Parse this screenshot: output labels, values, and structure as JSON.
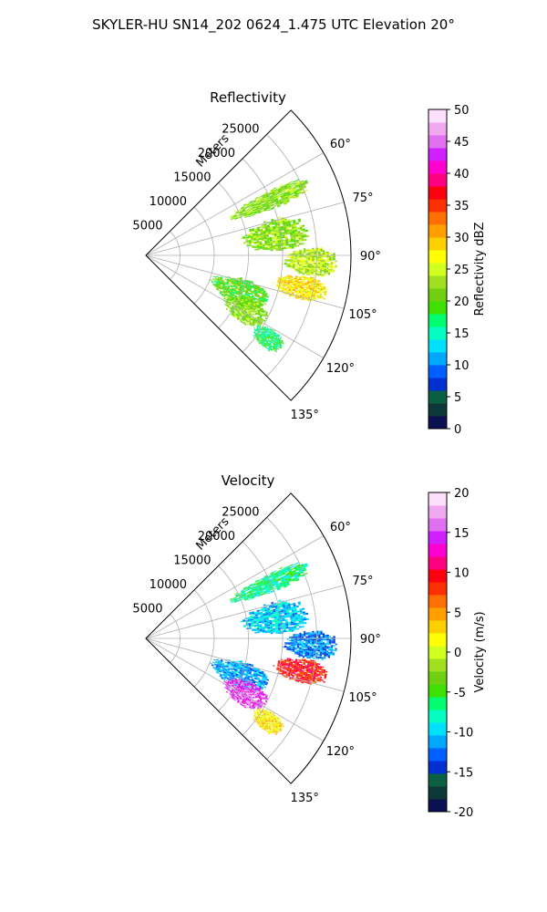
{
  "figure": {
    "suptitle": "SKYLER-HU  SN14_202  0624_1.475 UTC Elevation 20°"
  },
  "chart_data": [
    {
      "type": "heatmap",
      "projection": "polar-sector",
      "title": "Reflectivity",
      "range_label": "Meters",
      "range_ticks": [
        5000,
        10000,
        15000,
        20000,
        25000
      ],
      "range_lim": [
        0,
        30000
      ],
      "azimuth_lim_deg": [
        45,
        135
      ],
      "azimuth_ticks": [
        "60°",
        "75°",
        "90°",
        "105°",
        "120°",
        "135°"
      ],
      "grid": true,
      "colorbar": {
        "label": "Reflectivity dBZ",
        "ticks": [
          0,
          5,
          10,
          15,
          20,
          25,
          30,
          35,
          40,
          45,
          50
        ],
        "range": [
          0,
          50
        ],
        "colors": [
          "#0a1050",
          "#0d3838",
          "#0a6040",
          "#0030d0",
          "#0060ff",
          "#00a8ff",
          "#00e0ff",
          "#00ffc0",
          "#00ff70",
          "#40e000",
          "#70d010",
          "#a0e020",
          "#d0ff20",
          "#ffff00",
          "#ffd000",
          "#ffa000",
          "#ff7000",
          "#ff3000",
          "#ff0010",
          "#ff0080",
          "#ff00d0",
          "#d020ff",
          "#e070f0",
          "#f0a8f0",
          "#fce0fc"
        ]
      },
      "echo_regions": [
        {
          "az": [
            62,
            70
          ],
          "range": [
            13000,
            26000
          ],
          "value_dbz": 22
        },
        {
          "az": [
            74,
            88
          ],
          "range": [
            14000,
            24000
          ],
          "value_dbz": 22
        },
        {
          "az": [
            87,
            97
          ],
          "range": [
            20000,
            28000
          ],
          "value_dbz": 24
        },
        {
          "az": [
            97,
            106
          ],
          "range": [
            19000,
            27000
          ],
          "value_dbz": 28
        },
        {
          "az": [
            103,
            118
          ],
          "range": [
            10000,
            19000
          ],
          "value_dbz": 20
        },
        {
          "az": [
            112,
            125
          ],
          "range": [
            13000,
            20000
          ],
          "value_dbz": 22
        },
        {
          "az": [
            120,
            128
          ],
          "range": [
            19000,
            24000
          ],
          "value_dbz": 17
        }
      ]
    },
    {
      "type": "heatmap",
      "projection": "polar-sector",
      "title": "Velocity",
      "range_label": "Meters",
      "range_ticks": [
        5000,
        10000,
        15000,
        20000,
        25000
      ],
      "range_lim": [
        0,
        30000
      ],
      "azimuth_lim_deg": [
        45,
        135
      ],
      "azimuth_ticks": [
        "60°",
        "75°",
        "90°",
        "105°",
        "120°",
        "135°"
      ],
      "grid": true,
      "colorbar": {
        "label": "Velocity (m/s)",
        "ticks": [
          -20,
          -15,
          -10,
          -5,
          0,
          5,
          10,
          15,
          20
        ],
        "range": [
          -20,
          20
        ],
        "colors": [
          "#0a1050",
          "#0d3838",
          "#0a6040",
          "#0030d0",
          "#0060ff",
          "#00a8ff",
          "#00e0ff",
          "#00ffc0",
          "#00ff70",
          "#40e000",
          "#70d010",
          "#a0e020",
          "#d0ff20",
          "#ffff00",
          "#ffd000",
          "#ffa000",
          "#ff7000",
          "#ff3000",
          "#ff0010",
          "#ff0080",
          "#ff00d0",
          "#d020ff",
          "#e070f0",
          "#f0a8f0",
          "#fce0fc"
        ]
      },
      "echo_regions": [
        {
          "az": [
            62,
            70
          ],
          "range": [
            13000,
            26000
          ],
          "value_ms": -7
        },
        {
          "az": [
            74,
            88
          ],
          "range": [
            14000,
            24000
          ],
          "value_ms": -10
        },
        {
          "az": [
            87,
            97
          ],
          "range": [
            20000,
            28000
          ],
          "value_ms": -12
        },
        {
          "az": [
            97,
            106
          ],
          "range": [
            19000,
            27000
          ],
          "value_ms": 9
        },
        {
          "az": [
            103,
            118
          ],
          "range": [
            10000,
            19000
          ],
          "value_ms": -11
        },
        {
          "az": [
            112,
            125
          ],
          "range": [
            13000,
            20000
          ],
          "value_ms": 15
        },
        {
          "az": [
            120,
            128
          ],
          "range": [
            19000,
            24000
          ],
          "value_ms": 2
        }
      ]
    }
  ]
}
